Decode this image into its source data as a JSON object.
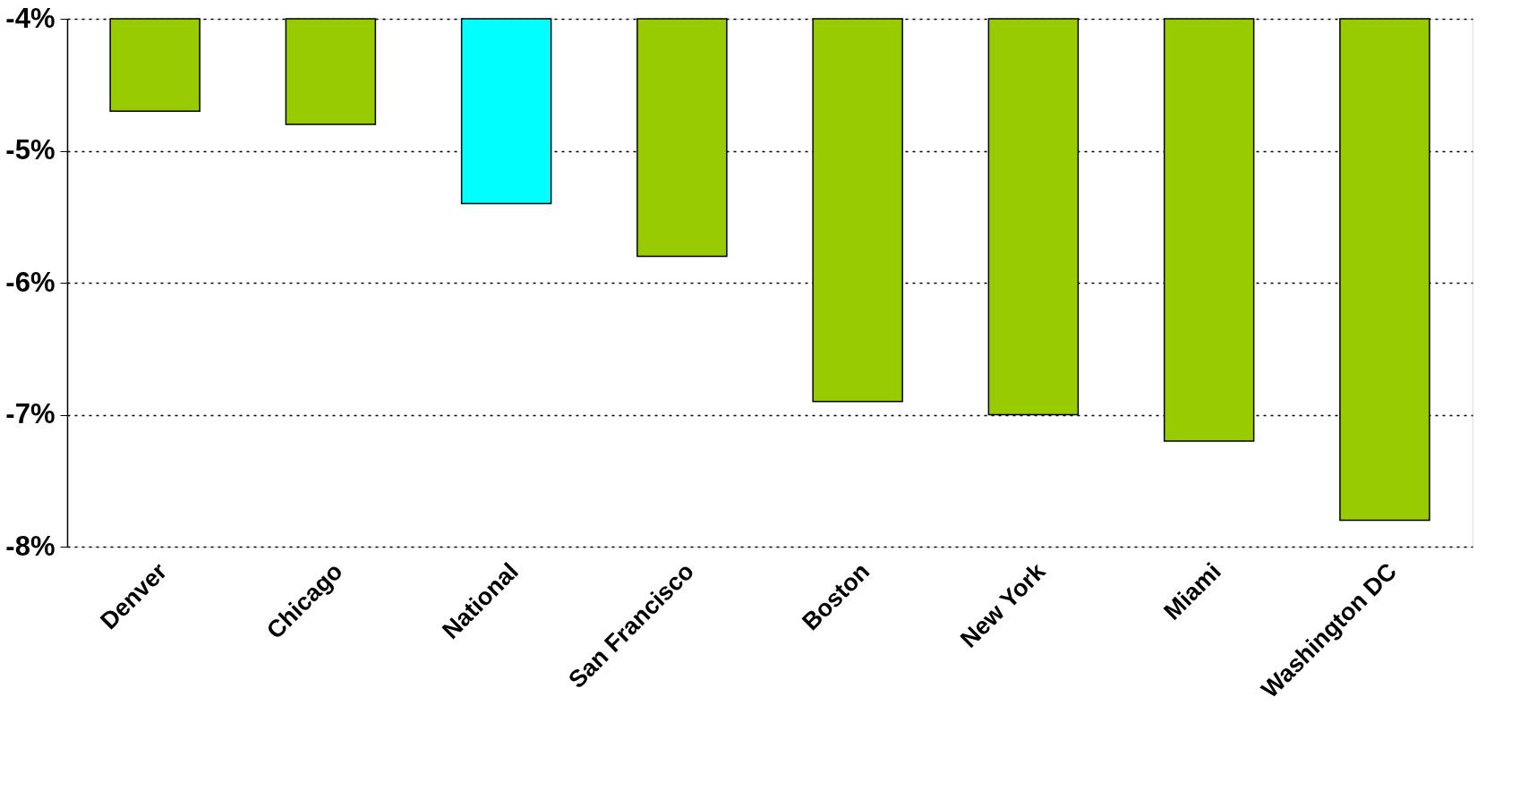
{
  "chart_data": {
    "type": "bar",
    "categories": [
      "Denver",
      "Chicago",
      "National",
      "San Francisco",
      "Boston",
      "New York",
      "Miami",
      "Washington DC"
    ],
    "values": [
      -4.7,
      -4.8,
      -5.4,
      -5.8,
      -6.9,
      -7.0,
      -7.2,
      -7.8
    ],
    "colors": [
      "#99cc00",
      "#99cc00",
      "#00ffff",
      "#99cc00",
      "#99cc00",
      "#99cc00",
      "#99cc00",
      "#99cc00"
    ],
    "ylim": [
      -8,
      -4
    ],
    "yticks": [
      {
        "value": -8,
        "label": "-8%"
      },
      {
        "value": -7,
        "label": "-7%"
      },
      {
        "value": -6,
        "label": "-6%"
      },
      {
        "value": -5,
        "label": "-5%"
      },
      {
        "value": -4,
        "label": "-4%"
      }
    ],
    "grid": "y"
  }
}
